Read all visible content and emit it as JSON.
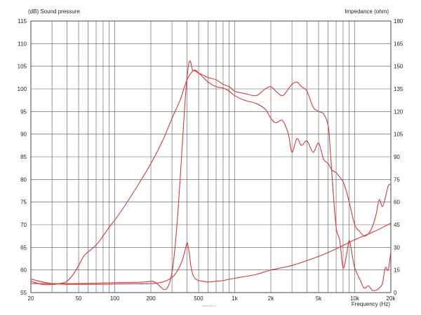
{
  "chart_data": {
    "type": "line",
    "title": "",
    "xlabel": "Frequency  (Hz)",
    "ylabel_left": "(dB)  Sound pressure",
    "ylabel_right": "Impedance  (ohm)",
    "x_scale": "log",
    "xlim": [
      20,
      20000
    ],
    "ylim_left": [
      55,
      115
    ],
    "ylim_right": [
      0,
      180
    ],
    "grid": true,
    "legend": "none",
    "x_tick_labels": [
      {
        "value": 20,
        "label": "20"
      },
      {
        "value": 50,
        "label": "50"
      },
      {
        "value": 100,
        "label": "100"
      },
      {
        "value": 200,
        "label": "200"
      },
      {
        "value": 500,
        "label": "500"
      },
      {
        "value": 1000,
        "label": "1k"
      },
      {
        "value": 2000,
        "label": "2k"
      },
      {
        "value": 5000,
        "label": "5k"
      },
      {
        "value": 10000,
        "label": "10k"
      },
      {
        "value": 20000,
        "label": "20k"
      }
    ],
    "y_left_ticks": [
      "55",
      "60",
      "65",
      "70",
      "75",
      "80",
      "85",
      "90",
      "95",
      "100",
      "105",
      "110",
      "115"
    ],
    "y_right_ticks": [
      "0",
      "15",
      "30",
      "45",
      "60",
      "75",
      "90",
      "105",
      "120",
      "135",
      "150",
      "165",
      "180"
    ],
    "series": [
      {
        "axis": "left",
        "x": [
          20,
          25,
          30,
          35,
          40,
          45,
          50,
          55,
          60,
          70,
          80,
          90,
          100,
          120,
          150,
          200,
          250,
          300,
          350,
          400,
          450,
          480,
          500,
          550,
          600,
          700,
          800,
          900,
          1000,
          1200,
          1500,
          1800,
          2000,
          2200,
          2500,
          2800,
          3000,
          3300,
          3600,
          4000,
          4500,
          5000,
          5500,
          6000,
          6500,
          7000,
          7500,
          8000,
          8500,
          9000,
          10000,
          11000,
          12000,
          13000,
          14000,
          15000,
          16000,
          17000,
          18000,
          19000,
          20000
        ],
        "y": [
          57.5,
          56.8,
          56.8,
          57.0,
          57.5,
          59.0,
          61.0,
          63.0,
          64.0,
          65.5,
          67.5,
          69.5,
          71.0,
          74.0,
          78.0,
          83.5,
          88.5,
          93.5,
          97.5,
          102.0,
          104.0,
          104.0,
          103.5,
          102.5,
          101.5,
          100.5,
          100.2,
          99.5,
          98.5,
          97.5,
          96.8,
          95.5,
          93.5,
          92.5,
          93.0,
          90.0,
          86.0,
          89.0,
          87.5,
          88.5,
          86.0,
          88.0,
          84.5,
          83.5,
          82.0,
          81.5,
          80.5,
          79.5,
          77.5,
          75.0,
          70.0,
          68.5,
          67.5,
          68.0,
          69.5,
          72.0,
          75.5,
          74.0,
          76.0,
          78.5,
          79.0
        ]
      },
      {
        "axis": "left",
        "x": [
          20,
          50,
          100,
          200,
          300,
          400,
          450,
          500,
          550,
          600,
          700,
          800,
          900,
          1000,
          1200,
          1500,
          1700,
          1800,
          2000,
          2200,
          2500,
          2800,
          3000,
          3300,
          3600,
          4000,
          4500,
          5000,
          5500,
          6000,
          6200,
          6500,
          7000,
          7500,
          8000,
          8500,
          9000,
          9500,
          10000,
          11000,
          12000,
          13000,
          14000,
          15000,
          16000,
          17000,
          18000,
          19000,
          20000
        ],
        "y": [
          57.0,
          57.0,
          57.2,
          57.5,
          59.5,
          102.5,
          104.0,
          103.5,
          103.0,
          102.5,
          102.0,
          101.0,
          100.5,
          99.5,
          99.0,
          98.5,
          99.5,
          100.0,
          100.5,
          99.5,
          98.5,
          100.0,
          101.0,
          101.5,
          100.5,
          99.5,
          96.0,
          95.0,
          94.5,
          92.0,
          88.0,
          80.0,
          69.5,
          66.5,
          60.5,
          63.0,
          66.5,
          63.5,
          60.5,
          58.0,
          56.0,
          56.5,
          55.5,
          55.5,
          56.0,
          57.0,
          60.5,
          60.0,
          64.0
        ]
      },
      {
        "axis": "right",
        "x": [
          20,
          25,
          30,
          40,
          50,
          60,
          80,
          100,
          150,
          200,
          250,
          300,
          330,
          360,
          380,
          400,
          410,
          420,
          430,
          440,
          460,
          500,
          550,
          600,
          700,
          800,
          1000,
          1500,
          2000,
          3000,
          5000,
          7000,
          10000,
          15000,
          20000
        ],
        "y": [
          9,
          7,
          6,
          5.5,
          5.5,
          5.5,
          5.5,
          5.7,
          5.8,
          6,
          7,
          10,
          14,
          20,
          26,
          33,
          30,
          25,
          18,
          14,
          10,
          8,
          7.5,
          7,
          7.5,
          8,
          9.5,
          12,
          15,
          18,
          24,
          29,
          35,
          41,
          46
        ]
      }
    ]
  },
  "watermark": "www.b&c.pl"
}
